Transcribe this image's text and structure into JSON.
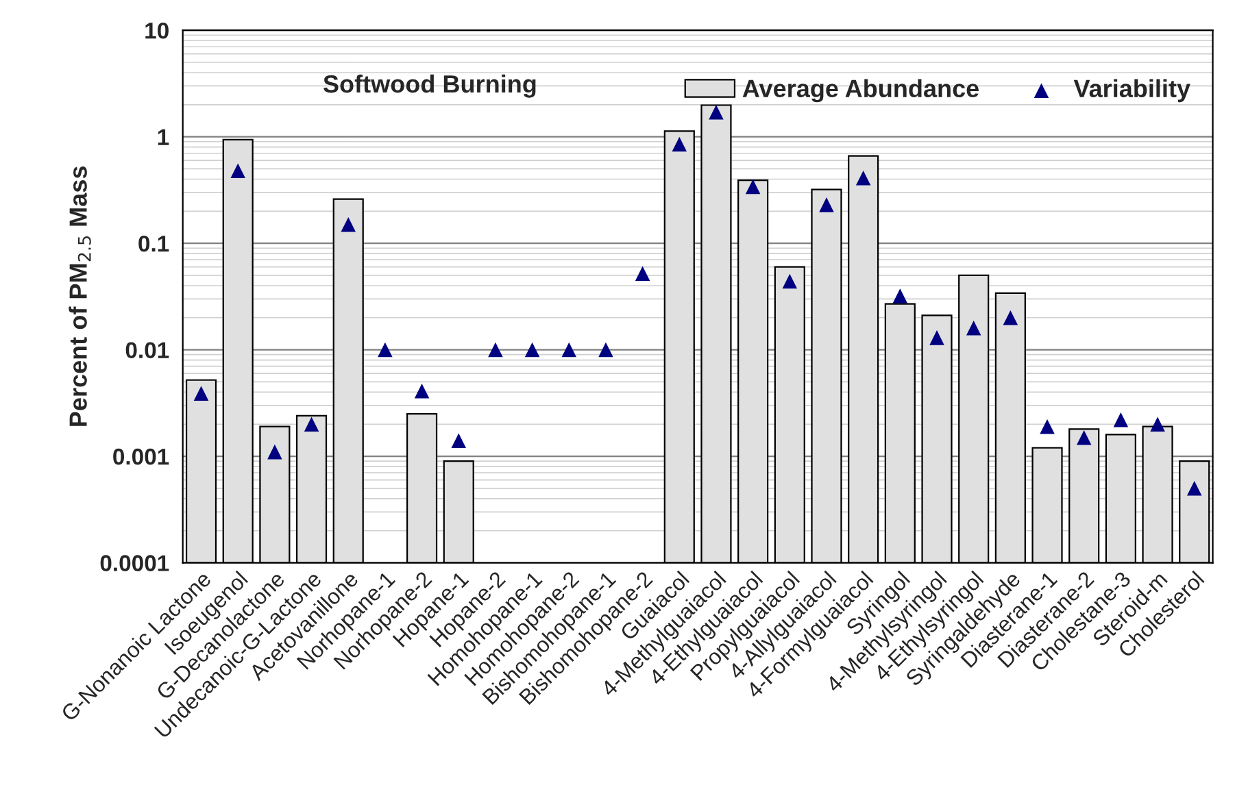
{
  "chart_data": {
    "type": "bar",
    "title": "Softwood Burning",
    "ylabel": "Percent of PM$_{2.5}$ Mass",
    "categories": [
      "G-Nonanoic Lactone",
      "Isoeugenol",
      "G-Decanolactone",
      "Undecanoic-G-Lactone",
      "Acetovanillone",
      "Norhopane-1",
      "Norhopane-2",
      "Hopane-1",
      "Hopane-2",
      "Homohopane-1",
      "Homohopane-2",
      "Bishomohopane-1",
      "Bishomohopane-2",
      "Guaiacol",
      "4-Methylguaiacol",
      "4-Ethylguaiacol",
      "Propylguaiacol",
      "4-Allylguaiacol",
      "4-Formylguaiacol",
      "Syringol",
      "4-Methylsyringol",
      "4-Ethylsyringol",
      "Syringaldehyde",
      "Diasterane-1",
      "Diasterane-2",
      "Cholestane-3",
      "Steroid-m",
      "Cholesterol"
    ],
    "series": [
      {
        "name": "Average Abundance",
        "color": "#e0e0e0",
        "values": [
          0.0052,
          0.94,
          0.0019,
          0.0024,
          0.26,
          null,
          0.0025,
          0.0009,
          null,
          null,
          null,
          null,
          null,
          1.13,
          1.98,
          0.39,
          0.06,
          0.32,
          0.66,
          0.027,
          0.021,
          0.05,
          0.034,
          0.0012,
          0.0018,
          0.0016,
          0.0019,
          0.0009
        ]
      },
      {
        "name": "Variability",
        "type": "scatter",
        "marker": "triangle",
        "color": "#000080",
        "values": [
          0.0039,
          0.48,
          0.0011,
          0.002,
          0.15,
          0.01,
          0.0041,
          0.0014,
          0.01,
          0.01,
          0.01,
          0.01,
          0.052,
          0.85,
          1.7,
          0.34,
          0.044,
          0.23,
          0.41,
          0.032,
          0.013,
          0.016,
          0.02,
          0.0019,
          0.0015,
          0.0022,
          0.002,
          0.0005
        ]
      }
    ],
    "log": true,
    "ylim": [
      0.0001,
      10
    ],
    "yticks": [
      0.0001,
      0.001,
      0.01,
      0.1,
      1,
      10
    ],
    "grid": "y",
    "legend": "top right"
  }
}
